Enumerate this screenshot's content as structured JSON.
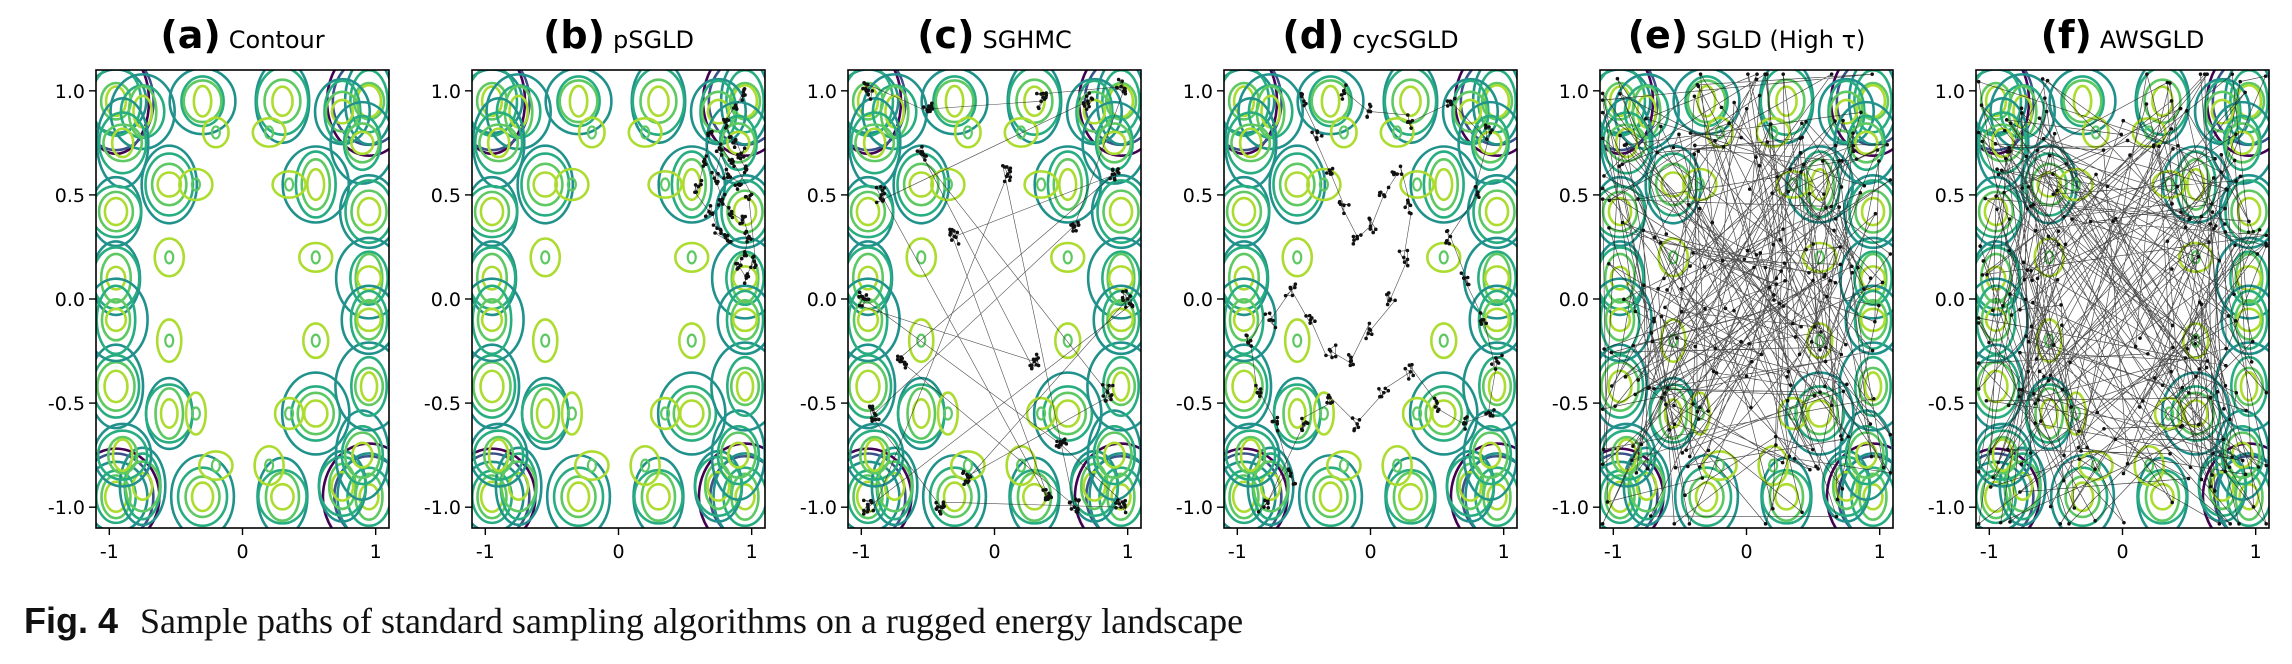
{
  "figure": {
    "caption_label": "Fig. 4",
    "caption_text": "Sample paths of standard sampling algorithms on a rugged energy landscape"
  },
  "chart_data": [
    {
      "type": "scatter",
      "panel_label": "(a)",
      "title": "Contour",
      "path": "none",
      "xlim": [
        -1.1,
        1.1
      ],
      "ylim": [
        -1.1,
        1.1
      ],
      "xticks": [
        "-1",
        "0",
        "1"
      ],
      "yticks": [
        "1.0",
        "0.5",
        "0.0",
        "-0.5",
        "-1.0"
      ],
      "xtick_values": [
        -1,
        0,
        1
      ],
      "ytick_values": [
        1.0,
        0.5,
        0.0,
        -0.5,
        -1.0
      ],
      "contour": "rugged energy landscape (viridis)",
      "points": []
    },
    {
      "type": "scatter",
      "panel_label": "(b)",
      "title": "pSGLD",
      "path": "local",
      "xlim": [
        -1.1,
        1.1
      ],
      "ylim": [
        -1.1,
        1.1
      ],
      "xticks": [
        "-1",
        "0",
        "1"
      ],
      "yticks": [
        "1.0",
        "0.5",
        "0.0",
        "-0.5",
        "-1.0"
      ],
      "xtick_values": [
        -1,
        0,
        1
      ],
      "ytick_values": [
        1.0,
        0.5,
        0.0,
        -0.5,
        -1.0
      ],
      "contour": "rugged energy landscape (viridis)",
      "points": [
        [
          0.95,
          0.98
        ],
        [
          0.88,
          0.92
        ],
        [
          0.8,
          0.85
        ],
        [
          0.86,
          0.75
        ],
        [
          0.92,
          0.7
        ],
        [
          0.96,
          0.62
        ],
        [
          0.9,
          0.55
        ],
        [
          0.82,
          0.6
        ],
        [
          0.76,
          0.72
        ],
        [
          0.72,
          0.58
        ],
        [
          0.78,
          0.48
        ],
        [
          0.85,
          0.42
        ],
        [
          0.93,
          0.38
        ],
        [
          0.98,
          0.3
        ],
        [
          0.95,
          0.22
        ],
        [
          0.9,
          0.15
        ],
        [
          0.96,
          0.1
        ],
        [
          1.02,
          0.18
        ],
        [
          0.98,
          0.48
        ],
        [
          0.86,
          0.66
        ],
        [
          0.7,
          0.8
        ],
        [
          0.64,
          0.66
        ],
        [
          0.6,
          0.54
        ],
        [
          0.68,
          0.42
        ],
        [
          0.74,
          0.34
        ],
        [
          0.82,
          0.28
        ]
      ]
    },
    {
      "type": "scatter",
      "panel_label": "(c)",
      "title": "SGHMC",
      "path": "jumps",
      "xlim": [
        -1.1,
        1.1
      ],
      "ylim": [
        -1.1,
        1.1
      ],
      "xticks": [
        "-1",
        "0",
        "1"
      ],
      "yticks": [
        "1.0",
        "0.5",
        "0.0",
        "-0.5",
        "-1.0"
      ],
      "xtick_values": [
        -1,
        0,
        1
      ],
      "ytick_values": [
        1.0,
        0.5,
        0.0,
        -0.5,
        -1.0
      ],
      "contour": "rugged energy landscape (viridis)",
      "points": [
        [
          -0.95,
          1.0
        ],
        [
          -0.5,
          0.9
        ],
        [
          0.35,
          0.95
        ],
        [
          0.95,
          1.02
        ],
        [
          0.6,
          0.35
        ],
        [
          -0.9,
          -0.55
        ],
        [
          -0.4,
          -1.0
        ],
        [
          0.95,
          -1.0
        ],
        [
          0.5,
          -0.7
        ],
        [
          -0.98,
          0.0
        ],
        [
          0.3,
          -0.3
        ],
        [
          -0.55,
          0.7
        ],
        [
          0.85,
          -0.45
        ],
        [
          -0.2,
          -0.85
        ],
        [
          1.0,
          0.0
        ],
        [
          -0.95,
          -1.0
        ],
        [
          0.1,
          0.6
        ],
        [
          0.6,
          -1.0
        ],
        [
          -0.7,
          -0.3
        ],
        [
          0.9,
          0.6
        ],
        [
          -0.3,
          0.3
        ],
        [
          0.4,
          -0.95
        ],
        [
          -0.85,
          0.5
        ],
        [
          0.7,
          0.95
        ]
      ]
    },
    {
      "type": "scatter",
      "panel_label": "(d)",
      "title": "cycSGLD",
      "path": "wander",
      "xlim": [
        -1.1,
        1.1
      ],
      "ylim": [
        -1.1,
        1.1
      ],
      "xticks": [
        "-1",
        "0",
        "1"
      ],
      "yticks": [
        "1.0",
        "0.5",
        "0.0",
        "-0.5",
        "-1.0"
      ],
      "xtick_values": [
        -1,
        0,
        1
      ],
      "ytick_values": [
        1.0,
        0.5,
        0.0,
        -0.5,
        -1.0
      ],
      "contour": "rugged energy landscape (viridis)",
      "points": [
        [
          -0.5,
          0.95
        ],
        [
          -0.4,
          0.8
        ],
        [
          -0.3,
          0.6
        ],
        [
          -0.2,
          0.45
        ],
        [
          -0.1,
          0.3
        ],
        [
          0.0,
          0.35
        ],
        [
          0.1,
          0.5
        ],
        [
          0.2,
          0.6
        ],
        [
          0.3,
          0.45
        ],
        [
          0.25,
          0.2
        ],
        [
          0.15,
          0.0
        ],
        [
          0.0,
          -0.15
        ],
        [
          -0.15,
          -0.3
        ],
        [
          -0.3,
          -0.25
        ],
        [
          -0.45,
          -0.1
        ],
        [
          -0.6,
          0.05
        ],
        [
          -0.75,
          -0.1
        ],
        [
          -0.9,
          -0.2
        ],
        [
          -0.85,
          -0.45
        ],
        [
          -0.7,
          -0.6
        ],
        [
          -0.6,
          -0.85
        ],
        [
          -0.8,
          -1.0
        ],
        [
          -0.5,
          -0.6
        ],
        [
          -0.3,
          -0.5
        ],
        [
          -0.1,
          -0.6
        ],
        [
          0.1,
          -0.45
        ],
        [
          0.3,
          -0.35
        ],
        [
          0.5,
          -0.5
        ],
        [
          0.7,
          -0.6
        ],
        [
          0.9,
          -0.55
        ],
        [
          0.95,
          -0.3
        ],
        [
          0.85,
          -0.1
        ],
        [
          0.7,
          0.1
        ],
        [
          0.6,
          0.3
        ],
        [
          0.8,
          0.5
        ],
        [
          0.9,
          0.8
        ],
        [
          0.6,
          0.95
        ],
        [
          0.3,
          0.85
        ],
        [
          0.0,
          0.9
        ],
        [
          -0.2,
          1.0
        ]
      ]
    },
    {
      "type": "scatter",
      "panel_label": "(e)",
      "title": "SGLD (High τ)",
      "path": "dense",
      "xlim": [
        -1.1,
        1.1
      ],
      "ylim": [
        -1.1,
        1.1
      ],
      "xticks": [
        "-1",
        "0",
        "1"
      ],
      "yticks": [
        "1.0",
        "0.5",
        "0.0",
        "-0.5",
        "-1.0"
      ],
      "xtick_values": [
        -1,
        0,
        1
      ],
      "ytick_values": [
        1.0,
        0.5,
        0.0,
        -0.5,
        -1.0
      ],
      "contour": "rugged energy landscape (viridis)",
      "points": [
        [
          -0.9,
          0.9
        ],
        [
          0.2,
          0.4
        ],
        [
          0.8,
          -0.3
        ],
        [
          -0.4,
          -0.7
        ],
        [
          0.6,
          0.85
        ],
        [
          -0.8,
          0.1
        ],
        [
          0.3,
          -0.9
        ],
        [
          0.95,
          0.5
        ],
        [
          -0.2,
          0.6
        ],
        [
          0.5,
          -0.1
        ],
        [
          -0.6,
          -0.4
        ],
        [
          0.1,
          0.95
        ],
        [
          0.9,
          -0.8
        ],
        [
          -0.95,
          -0.9
        ],
        [
          0.0,
          0.0
        ],
        [
          0.7,
          0.3
        ],
        [
          -0.5,
          0.8
        ],
        [
          0.4,
          -0.6
        ],
        [
          -0.7,
          -0.1
        ],
        [
          0.85,
          0.95
        ],
        [
          -0.1,
          -0.4
        ],
        [
          0.6,
          -0.9
        ],
        [
          -0.9,
          0.5
        ],
        [
          0.25,
          0.7
        ],
        [
          0.95,
          0.05
        ],
        [
          -0.3,
          -0.95
        ],
        [
          0.45,
          0.2
        ],
        [
          -0.8,
          -0.6
        ],
        [
          0.15,
          -0.25
        ],
        [
          -0.55,
          0.35
        ],
        [
          0.75,
          -0.55
        ],
        [
          -0.15,
          0.9
        ],
        [
          0.9,
          0.65
        ],
        [
          -0.95,
          -0.3
        ],
        [
          0.35,
          0.05
        ],
        [
          -0.4,
          0.15
        ]
      ]
    },
    {
      "type": "scatter",
      "panel_label": "(f)",
      "title": "AWSGLD",
      "path": "dense-edge",
      "xlim": [
        -1.1,
        1.1
      ],
      "ylim": [
        -1.1,
        1.1
      ],
      "xticks": [
        "-1",
        "0",
        "1"
      ],
      "yticks": [
        "1.0",
        "0.5",
        "0.0",
        "-0.5",
        "-1.0"
      ],
      "xtick_values": [
        -1,
        0,
        1
      ],
      "ytick_values": [
        1.0,
        0.5,
        0.0,
        -0.5,
        -1.0
      ],
      "contour": "rugged energy landscape (viridis)",
      "points": [
        [
          -0.95,
          0.95
        ],
        [
          0.9,
          0.9
        ],
        [
          -0.9,
          -0.9
        ],
        [
          0.95,
          -0.95
        ],
        [
          -0.6,
          0.85
        ],
        [
          0.6,
          -0.85
        ],
        [
          -0.85,
          0.3
        ],
        [
          0.85,
          -0.3
        ],
        [
          0.1,
          0.6
        ],
        [
          -0.1,
          -0.6
        ],
        [
          0.8,
          0.5
        ],
        [
          -0.8,
          -0.5
        ],
        [
          0.4,
          0.95
        ],
        [
          -0.4,
          -0.95
        ],
        [
          0.95,
          0.2
        ],
        [
          -0.95,
          -0.2
        ],
        [
          0.3,
          -0.4
        ],
        [
          -0.3,
          0.4
        ],
        [
          0.7,
          -0.7
        ],
        [
          -0.7,
          0.7
        ],
        [
          0.55,
          0.3
        ],
        [
          -0.55,
          -0.3
        ],
        [
          0.9,
          -0.6
        ],
        [
          -0.9,
          0.6
        ],
        [
          0.2,
          0.9
        ],
        [
          -0.2,
          -0.9
        ],
        [
          0.6,
          -0.2
        ],
        [
          -0.6,
          0.2
        ]
      ]
    }
  ]
}
